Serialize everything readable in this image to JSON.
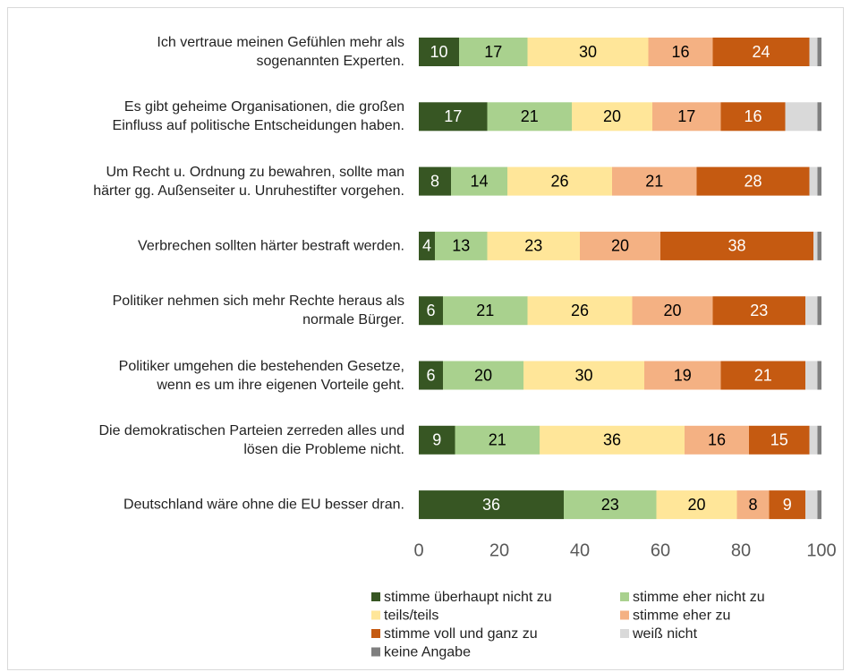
{
  "chart_data": {
    "type": "stacked_barh",
    "categories": [
      "Ich vertraue meinen Gefühlen mehr als\nsogenannten Experten.",
      "Es gibt geheime Organisationen, die großen\nEinfluss auf politische Entscheidungen haben.",
      "Um Recht u. Ordnung zu bewahren, sollte man\nhärter gg. Außenseiter u. Unruhestifter vorgehen.",
      "Verbrechen sollten härter bestraft werden.",
      "Politiker nehmen sich mehr Rechte heraus als\nnormale Bürger.",
      "Politiker umgehen die bestehenden Gesetze,\nwenn es um ihre eigenen Vorteile geht.",
      "Die demokratischen Parteien zerreden alles und\nlösen die Probleme nicht.",
      "Deutschland wäre ohne die EU besser dran."
    ],
    "series": [
      {
        "name": "stimme überhaupt nicht zu",
        "color": "#375623",
        "labels": true,
        "values": [
          10,
          17,
          8,
          4,
          6,
          6,
          9,
          36
        ]
      },
      {
        "name": "stimme eher nicht zu",
        "color": "#a9d18e",
        "labels": true,
        "values": [
          17,
          21,
          14,
          13,
          21,
          20,
          21,
          23
        ]
      },
      {
        "name": "teils/teils",
        "color": "#ffe699",
        "labels": true,
        "values": [
          30,
          20,
          26,
          23,
          26,
          30,
          36,
          20
        ]
      },
      {
        "name": "stimme eher zu",
        "color": "#f4b183",
        "labels": true,
        "values": [
          16,
          17,
          21,
          20,
          20,
          19,
          16,
          8
        ]
      },
      {
        "name": "stimme voll und ganz zu",
        "color": "#c55a11",
        "labels": true,
        "values": [
          24,
          16,
          28,
          38,
          23,
          21,
          15,
          9
        ]
      },
      {
        "name": "weiß nicht",
        "color": "#d9d9d9",
        "labels": false,
        "values": [
          2,
          8,
          2,
          1,
          3,
          3,
          2,
          3
        ]
      },
      {
        "name": "keine Angabe",
        "color": "#7f7f7f",
        "labels": false,
        "values": [
          1,
          1,
          1,
          1,
          1,
          1,
          1,
          1
        ]
      }
    ],
    "xlim": [
      0,
      100
    ],
    "xticks": [
      0,
      20,
      40,
      60,
      80,
      100
    ],
    "grid": false
  }
}
